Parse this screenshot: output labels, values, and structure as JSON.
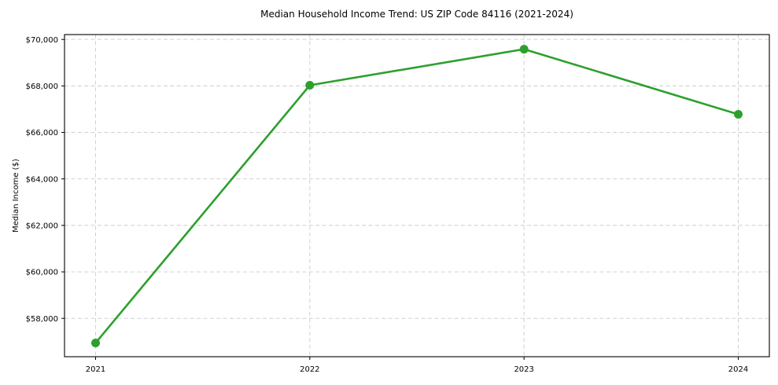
{
  "chart_data": {
    "type": "line",
    "title": "Median Household Income Trend: US ZIP Code 84116 (2021-2024)",
    "xlabel": "",
    "ylabel": "Median Income ($)",
    "categories": [
      "2021",
      "2022",
      "2023",
      "2024"
    ],
    "series": [
      {
        "name": "Median Household Income",
        "color": "#2ca02c",
        "values": [
          56940,
          68030,
          69580,
          66780
        ]
      }
    ],
    "ylim": [
      56350,
      70210
    ],
    "yticks": [
      {
        "value": 58000,
        "label": "$58,000"
      },
      {
        "value": 60000,
        "label": "$60,000"
      },
      {
        "value": 62000,
        "label": "$62,000"
      },
      {
        "value": 64000,
        "label": "$64,000"
      },
      {
        "value": 66000,
        "label": "$66,000"
      },
      {
        "value": 68000,
        "label": "$68,000"
      },
      {
        "value": 70000,
        "label": "$70,000"
      }
    ],
    "grid": true,
    "grid_style": "dashed",
    "grid_color": "#cccccc",
    "axis_color": "#000000",
    "text_color": "#000000",
    "background_color": "#ffffff",
    "marker": "circle",
    "legend_position": "none"
  }
}
